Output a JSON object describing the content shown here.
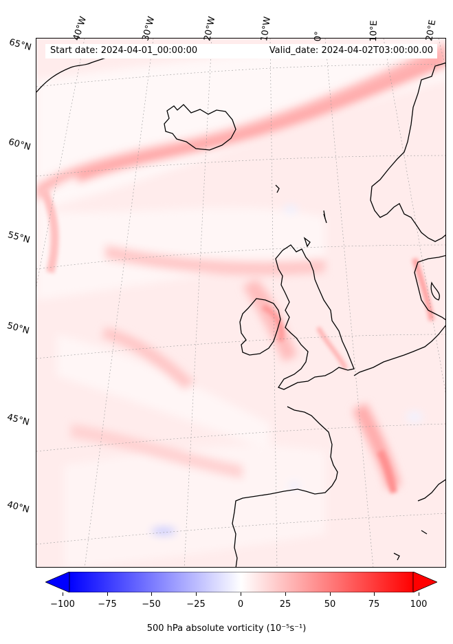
{
  "header": {
    "start_date": "Start date: 2024-04-01_00:00:00",
    "valid_date": "Valid_date: 2024-04-02T03:00:00.00"
  },
  "lon_labels": [
    "40°W",
    "30°W",
    "20°W",
    "10°W",
    "0°",
    "10°E",
    "20°E"
  ],
  "lat_labels": [
    "65°N",
    "60°N",
    "55°N",
    "50°N",
    "45°N",
    "40°N"
  ],
  "colorbar": {
    "ticks": [
      "−100",
      "−75",
      "−50",
      "−25",
      "0",
      "25",
      "50",
      "75",
      "100"
    ],
    "title": "500 hPa absolute vorticity (10⁻⁵s⁻¹)",
    "min": -100,
    "max": 100,
    "colors": {
      "negative": "#0000ff",
      "neutral": "#ffffff",
      "positive": "#ff0000"
    }
  },
  "colors": {
    "ocean_base": "#fff4f4",
    "coastline": "#000000",
    "gridline": "#9a9a9a"
  }
}
